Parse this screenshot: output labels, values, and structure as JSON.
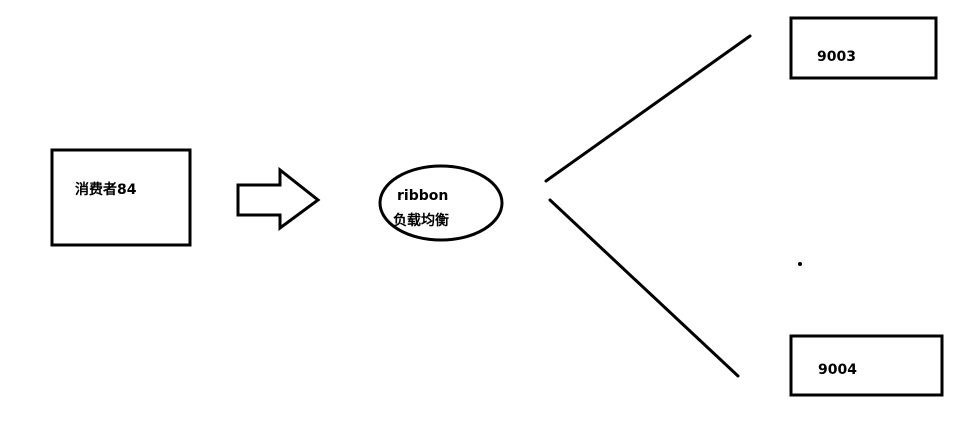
{
  "diagram": {
    "consumer_label": "消费者84",
    "load_balancer": {
      "line1": "ribbon",
      "line2": "负载均衡"
    },
    "server_top_label": "9003",
    "server_bottom_label": "9004"
  },
  "colors": {
    "stroke": "#000000",
    "background": "#ffffff"
  }
}
